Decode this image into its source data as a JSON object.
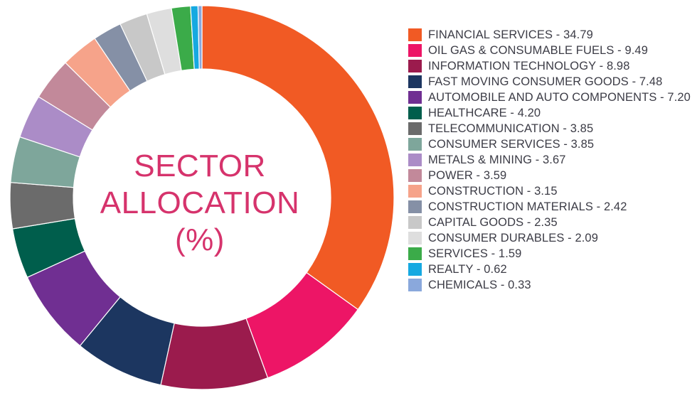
{
  "chart_data": {
    "type": "pie",
    "title": "SECTOR ALLOCATION (%)",
    "title_lines": [
      "SECTOR",
      "ALLOCATION",
      "(%)"
    ],
    "legend_position": "right",
    "slices": [
      {
        "label": "FINANCIAL SERVICES",
        "value": 34.79,
        "value_text": "34.79",
        "color": "#f15a24"
      },
      {
        "label": "OIL GAS & CONSUMABLE FUELS",
        "value": 9.49,
        "value_text": "9.49",
        "color": "#ed1566"
      },
      {
        "label": "INFORMATION TECHNOLOGY",
        "value": 8.98,
        "value_text": "8.98",
        "color": "#9b1b4d"
      },
      {
        "label": "FAST MOVING CONSUMER GOODS",
        "value": 7.48,
        "value_text": "7.48",
        "color": "#1c3660"
      },
      {
        "label": "AUTOMOBILE AND AUTO COMPONENTS",
        "value": 7.2,
        "value_text": "7.20",
        "color": "#702f92"
      },
      {
        "label": "HEALTHCARE",
        "value": 4.2,
        "value_text": "4.20",
        "color": "#005e4c"
      },
      {
        "label": "TELECOMMUNICATION",
        "value": 3.85,
        "value_text": "3.85",
        "color": "#6b6b6b"
      },
      {
        "label": "CONSUMER SERVICES",
        "value": 3.85,
        "value_text": "3.85",
        "color": "#7ea69b"
      },
      {
        "label": "METALS & MINING",
        "value": 3.67,
        "value_text": "3.67",
        "color": "#ab8cc7"
      },
      {
        "label": "POWER",
        "value": 3.59,
        "value_text": "3.59",
        "color": "#c2899a"
      },
      {
        "label": "CONSTRUCTION",
        "value": 3.15,
        "value_text": "3.15",
        "color": "#f6a38a"
      },
      {
        "label": "CONSTRUCTION MATERIALS",
        "value": 2.42,
        "value_text": "2.42",
        "color": "#8590a6"
      },
      {
        "label": "CAPITAL GOODS",
        "value": 2.35,
        "value_text": "2.35",
        "color": "#c8c8c8"
      },
      {
        "label": "CONSUMER DURABLES",
        "value": 2.09,
        "value_text": "2.09",
        "color": "#dedede"
      },
      {
        "label": "SERVICES",
        "value": 1.59,
        "value_text": "1.59",
        "color": "#3bab49"
      },
      {
        "label": "REALTY",
        "value": 0.62,
        "value_text": "0.62",
        "color": "#16a9e1"
      },
      {
        "label": "CHEMICALS",
        "value": 0.33,
        "value_text": "0.33",
        "color": "#8aa8dc"
      }
    ]
  }
}
